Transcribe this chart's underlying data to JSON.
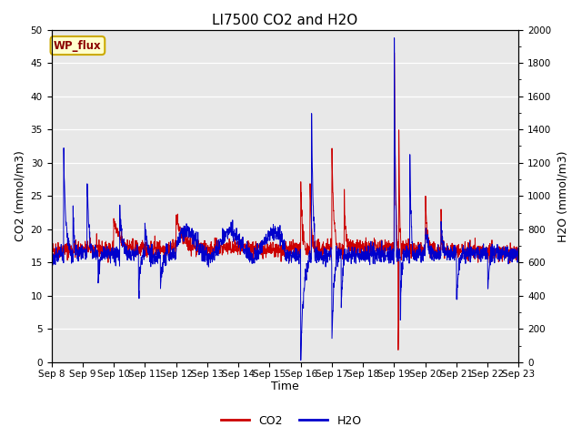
{
  "title": "LI7500 CO2 and H2O",
  "xlabel": "Time",
  "ylabel_left": "CO2 (mmol/m3)",
  "ylabel_right": "H2O (mmol/m3)",
  "xlim_days": [
    0,
    15
  ],
  "ylim_left": [
    0,
    50
  ],
  "ylim_right": [
    0,
    2000
  ],
  "x_tick_labels": [
    "Sep 8",
    "Sep 9",
    "Sep 10",
    "Sep 11",
    "Sep 12",
    "Sep 13",
    "Sep 14",
    "Sep 15",
    "Sep 16",
    "Sep 17",
    "Sep 18",
    "Sep 19",
    "Sep 20",
    "Sep 21",
    "Sep 22",
    "Sep 23"
  ],
  "co2_color": "#CC0000",
  "h2o_color": "#0000CC",
  "background_color": "#E8E8E8",
  "legend_label": "WP_flux",
  "legend_box_color": "#FFFFCC",
  "legend_box_border": "#CCAA00",
  "title_fontsize": 11,
  "axis_fontsize": 9,
  "tick_fontsize": 7.5,
  "xlabel_fontsize": 9
}
